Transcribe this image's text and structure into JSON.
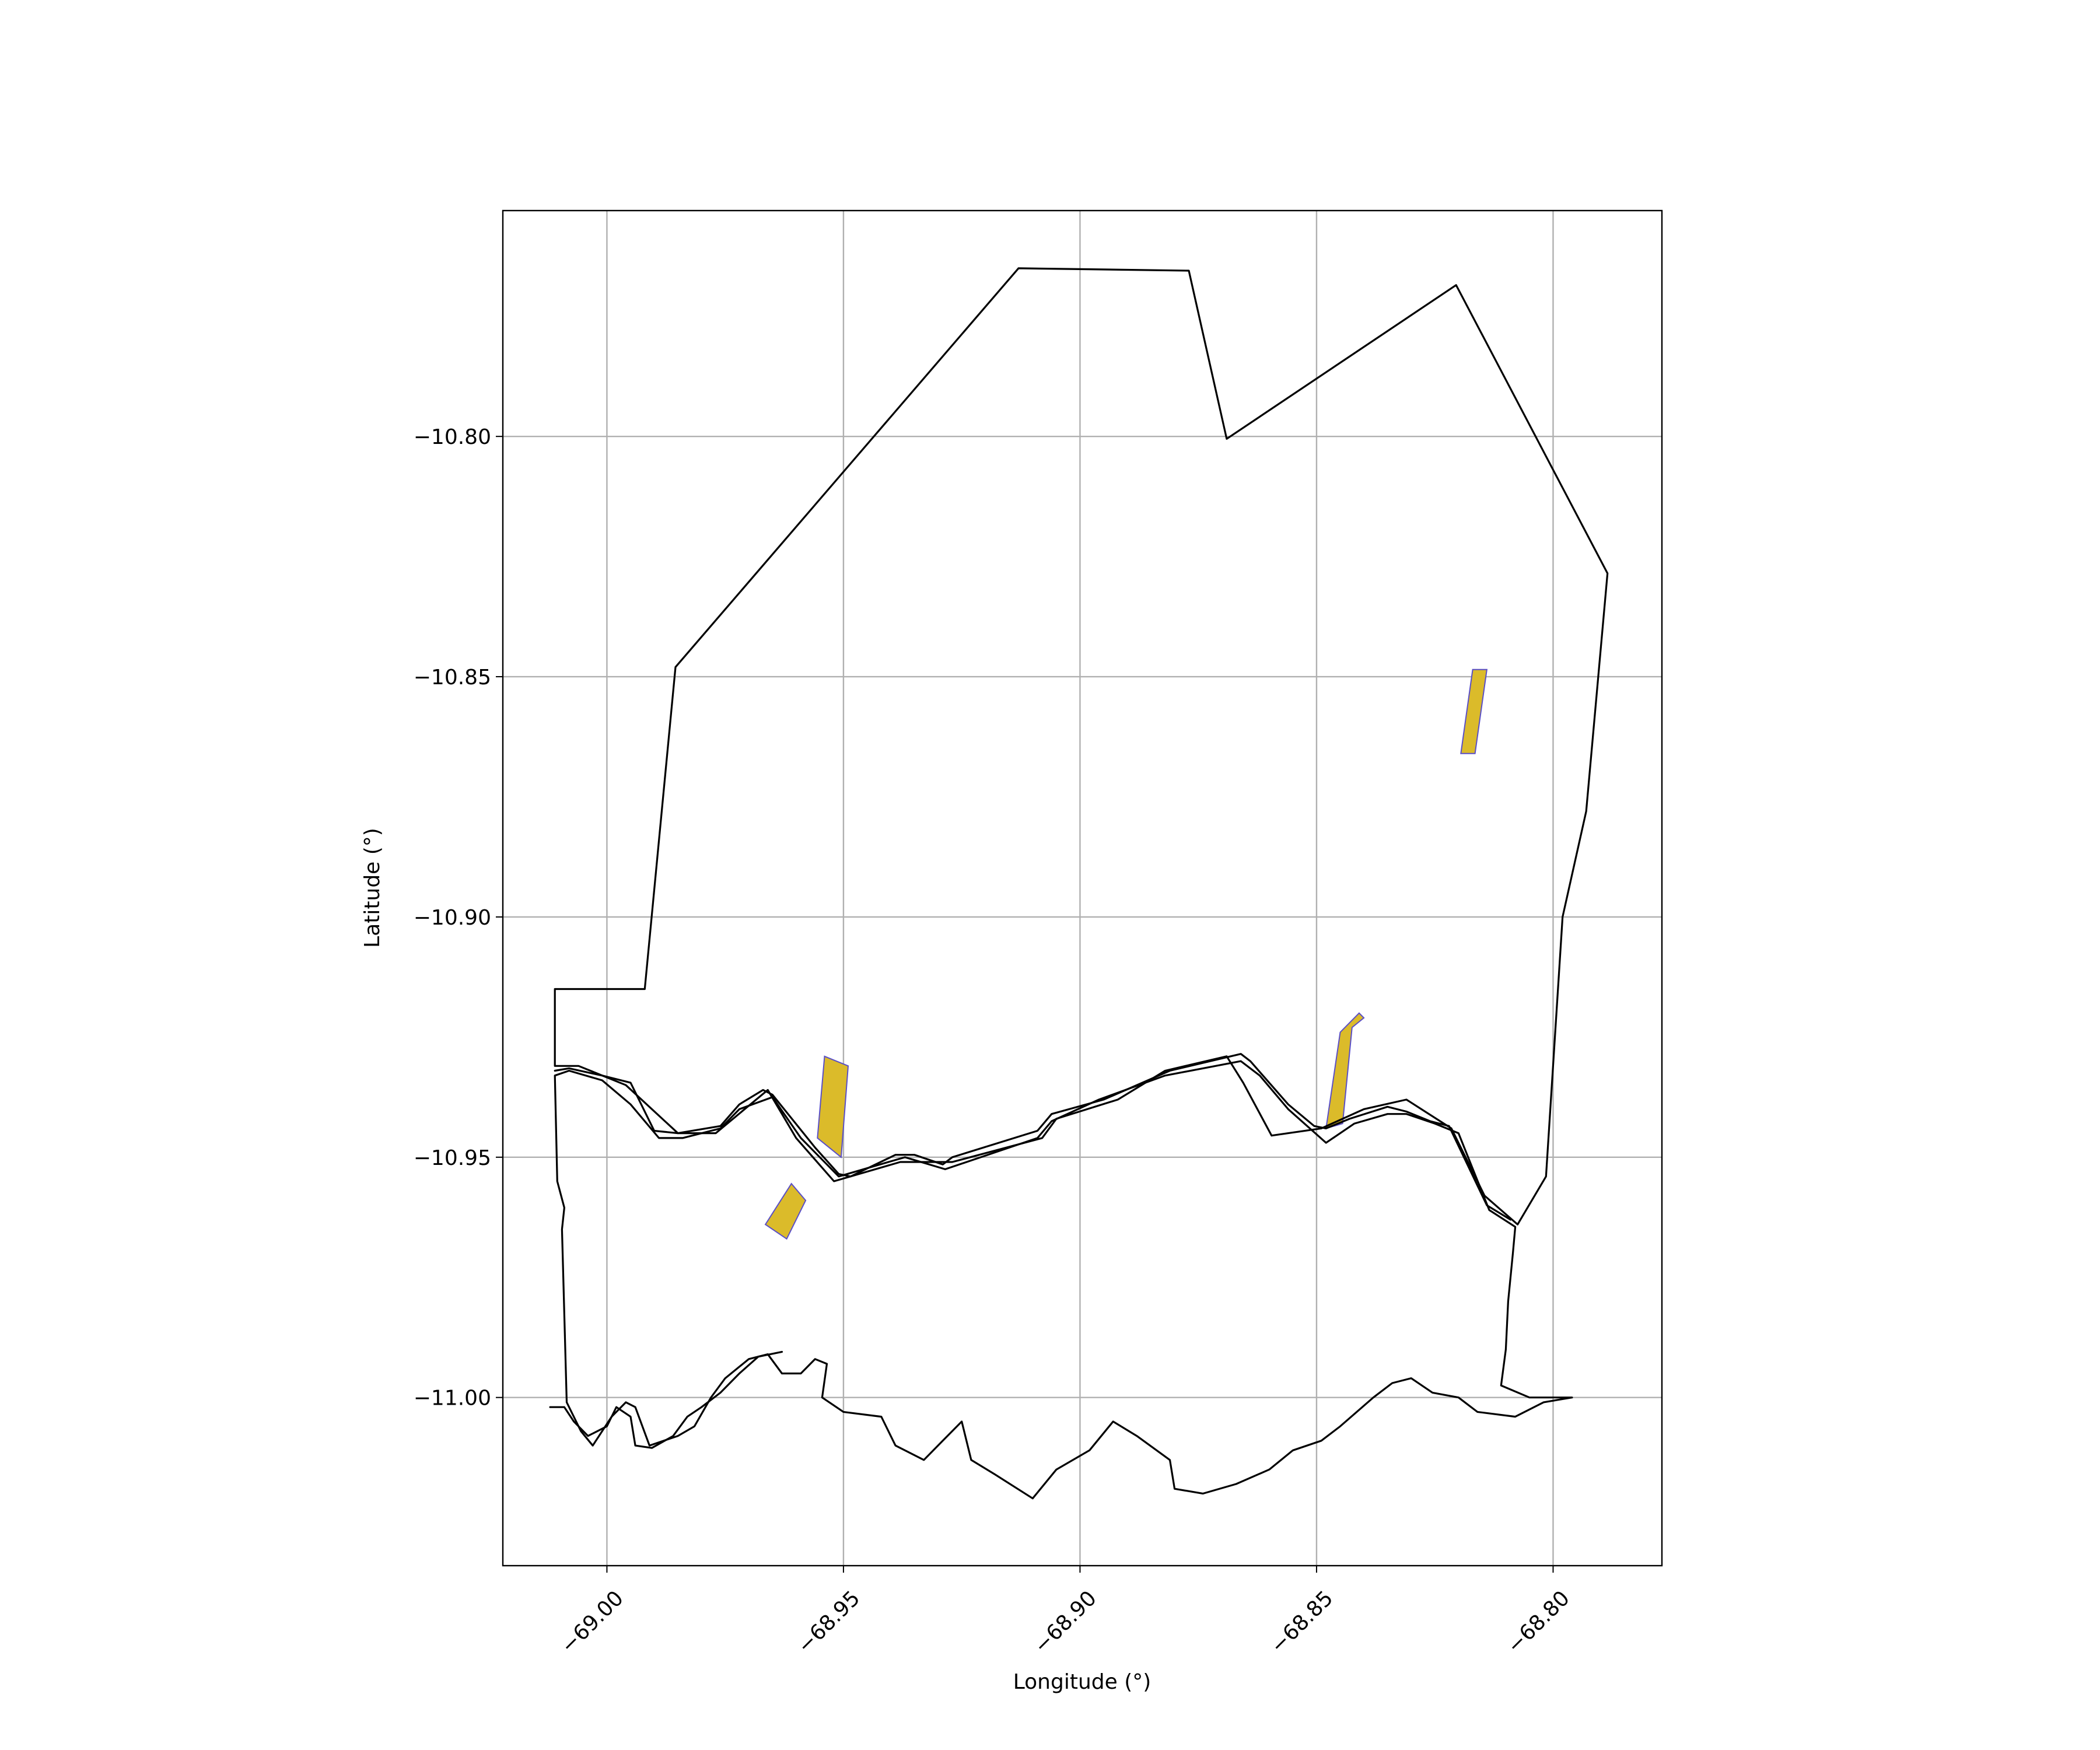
{
  "chart_data": {
    "type": "map",
    "xlabel": "Longitude (°)",
    "ylabel": "Latitude (°)",
    "xlim": [
      -69.022,
      -68.777
    ],
    "ylim": [
      -11.035,
      -10.753
    ],
    "grid": true,
    "x_ticks": [
      {
        "value": -69.0,
        "label": "−69.00"
      },
      {
        "value": -68.95,
        "label": "−68.95"
      },
      {
        "value": -68.9,
        "label": "−68.90"
      },
      {
        "value": -68.85,
        "label": "−68.85"
      },
      {
        "value": -68.8,
        "label": "−68.80"
      }
    ],
    "y_ticks": [
      {
        "value": -10.8,
        "label": "−10.80"
      },
      {
        "value": -10.85,
        "label": "−10.85"
      },
      {
        "value": -10.9,
        "label": "−10.90"
      },
      {
        "value": -10.95,
        "label": "−10.95"
      },
      {
        "value": -11.0,
        "label": "−11.00"
      }
    ],
    "colors": {
      "boundary": "#000000",
      "patch_fill": "#dbbb2a",
      "patch_edge": "#5a4fc6",
      "grid": "#b0b0b0"
    },
    "boundary_lines": [
      {
        "name": "region-outline",
        "points": [
          [
            -68.8595,
            -10.9455
          ],
          [
            -68.8655,
            -10.9345
          ],
          [
            -68.869,
            -10.929
          ],
          [
            -68.882,
            -10.932
          ],
          [
            -68.892,
            -10.938
          ],
          [
            -68.905,
            -10.942
          ],
          [
            -68.908,
            -10.946
          ],
          [
            -68.927,
            -10.951
          ],
          [
            -68.938,
            -10.951
          ],
          [
            -68.952,
            -10.955
          ],
          [
            -68.96,
            -10.946
          ],
          [
            -68.966,
            -10.936
          ],
          [
            -68.977,
            -10.945
          ],
          [
            -68.985,
            -10.945
          ],
          [
            -68.996,
            -10.935
          ],
          [
            -69.006,
            -10.931
          ],
          [
            -69.011,
            -10.931
          ],
          [
            -69.011,
            -10.915
          ],
          [
            -68.992,
            -10.915
          ],
          [
            -68.9855,
            -10.848
          ],
          [
            -68.913,
            -10.765
          ],
          [
            -68.877,
            -10.7655
          ],
          [
            -68.869,
            -10.8005
          ],
          [
            -68.8205,
            -10.7685
          ],
          [
            -68.7885,
            -10.8285
          ],
          [
            -68.793,
            -10.878
          ],
          [
            -68.798,
            -10.9
          ],
          [
            -68.8015,
            -10.954
          ],
          [
            -68.8075,
            -10.964
          ],
          [
            -68.8145,
            -10.958
          ],
          [
            -68.8215,
            -10.944
          ],
          [
            -68.831,
            -10.938
          ],
          [
            -68.84,
            -10.94
          ],
          [
            -68.849,
            -10.944
          ],
          [
            -68.8595,
            -10.9455
          ]
        ]
      },
      {
        "name": "lower-outline",
        "points": [
          [
            -68.796,
            -11.0
          ],
          [
            -68.805,
            -11.0
          ],
          [
            -68.811,
            -10.9975
          ],
          [
            -68.81,
            -10.99
          ],
          [
            -68.8095,
            -10.98
          ],
          [
            -68.8085,
            -10.97
          ],
          [
            -68.808,
            -10.9645
          ],
          [
            -68.8135,
            -10.961
          ],
          [
            -68.82,
            -10.945
          ],
          [
            -68.825,
            -10.943
          ],
          [
            -68.831,
            -10.941
          ],
          [
            -68.835,
            -10.941
          ],
          [
            -68.842,
            -10.943
          ],
          [
            -68.848,
            -10.947
          ],
          [
            -68.856,
            -10.94
          ],
          [
            -68.862,
            -10.933
          ],
          [
            -68.866,
            -10.93
          ],
          [
            -68.882,
            -10.933
          ],
          [
            -68.896,
            -10.938
          ],
          [
            -68.906,
            -10.9425
          ],
          [
            -68.909,
            -10.946
          ],
          [
            -68.9285,
            -10.9525
          ],
          [
            -68.937,
            -10.95
          ],
          [
            -68.951,
            -10.954
          ],
          [
            -68.959,
            -10.946
          ],
          [
            -68.965,
            -10.9375
          ],
          [
            -68.972,
            -10.94
          ],
          [
            -68.976,
            -10.944
          ],
          [
            -68.984,
            -10.946
          ],
          [
            -68.989,
            -10.946
          ],
          [
            -68.995,
            -10.939
          ],
          [
            -69.001,
            -10.934
          ],
          [
            -69.008,
            -10.932
          ],
          [
            -69.011,
            -10.933
          ],
          [
            -69.0105,
            -10.955
          ],
          [
            -69.009,
            -10.9605
          ],
          [
            -69.0095,
            -10.965
          ],
          [
            -69.0085,
            -11.001
          ],
          [
            -69.0055,
            -11.007
          ],
          [
            -69.003,
            -11.01
          ],
          [
            -68.999,
            -11.004
          ],
          [
            -68.996,
            -11.001
          ],
          [
            -68.994,
            -11.002
          ],
          [
            -68.991,
            -11.01
          ],
          [
            -68.985,
            -11.008
          ],
          [
            -68.9815,
            -11.006
          ],
          [
            -68.978,
            -11.0
          ],
          [
            -68.975,
            -10.996
          ],
          [
            -68.97,
            -10.992
          ],
          [
            -68.966,
            -10.991
          ],
          [
            -68.963,
            -10.995
          ],
          [
            -68.959,
            -10.995
          ],
          [
            -68.956,
            -10.992
          ],
          [
            -68.9535,
            -10.993
          ],
          [
            -68.9545,
            -11.0
          ],
          [
            -68.95,
            -11.003
          ],
          [
            -68.942,
            -11.004
          ],
          [
            -68.939,
            -11.01
          ],
          [
            -68.933,
            -11.013
          ],
          [
            -68.929,
            -11.009
          ],
          [
            -68.925,
            -11.005
          ],
          [
            -68.923,
            -11.013
          ],
          [
            -68.918,
            -11.016
          ],
          [
            -68.91,
            -11.021
          ],
          [
            -68.905,
            -11.015
          ],
          [
            -68.898,
            -11.011
          ],
          [
            -68.893,
            -11.005
          ],
          [
            -68.888,
            -11.008
          ],
          [
            -68.881,
            -11.013
          ],
          [
            -68.88,
            -11.019
          ],
          [
            -68.874,
            -11.02
          ],
          [
            -68.867,
            -11.018
          ],
          [
            -68.86,
            -11.015
          ],
          [
            -68.855,
            -11.011
          ],
          [
            -68.849,
            -11.009
          ],
          [
            -68.845,
            -11.006
          ],
          [
            -68.838,
            -11.0
          ],
          [
            -68.834,
            -10.997
          ],
          [
            -68.83,
            -10.996
          ],
          [
            -68.8255,
            -10.999
          ],
          [
            -68.82,
            -11.0
          ],
          [
            -68.816,
            -11.003
          ],
          [
            -68.808,
            -11.004
          ],
          [
            -68.802,
            -11.001
          ],
          [
            -68.796,
            -11.0
          ]
        ]
      },
      {
        "name": "river-north-bank",
        "points": [
          [
            -69.011,
            -10.932
          ],
          [
            -69.008,
            -10.9315
          ],
          [
            -69.001,
            -10.933
          ],
          [
            -68.995,
            -10.9345
          ],
          [
            -68.99,
            -10.9445
          ],
          [
            -68.985,
            -10.945
          ],
          [
            -68.976,
            -10.9435
          ],
          [
            -68.972,
            -10.939
          ],
          [
            -68.967,
            -10.936
          ],
          [
            -68.965,
            -10.937
          ],
          [
            -68.956,
            -10.948
          ],
          [
            -68.951,
            -10.9535
          ],
          [
            -68.9485,
            -10.954
          ],
          [
            -68.939,
            -10.9495
          ],
          [
            -68.935,
            -10.9495
          ],
          [
            -68.929,
            -10.9515
          ],
          [
            -68.927,
            -10.95
          ],
          [
            -68.909,
            -10.9445
          ],
          [
            -68.906,
            -10.941
          ],
          [
            -68.895,
            -10.938
          ],
          [
            -68.881,
            -10.932
          ],
          [
            -68.866,
            -10.9285
          ],
          [
            -68.864,
            -10.93
          ],
          [
            -68.856,
            -10.939
          ],
          [
            -68.8505,
            -10.9435
          ],
          [
            -68.848,
            -10.944
          ],
          [
            -68.843,
            -10.942
          ],
          [
            -68.835,
            -10.9395
          ],
          [
            -68.831,
            -10.9405
          ],
          [
            -68.826,
            -10.9425
          ],
          [
            -68.822,
            -10.9435
          ],
          [
            -68.814,
            -10.96
          ],
          [
            -68.809,
            -10.963
          ]
        ]
      },
      {
        "name": "southern-river-a",
        "points": [
          [
            -69.012,
            -11.002
          ],
          [
            -69.009,
            -11.002
          ],
          [
            -69.007,
            -11.005
          ],
          [
            -69.004,
            -11.008
          ],
          [
            -69.0,
            -11.006
          ],
          [
            -68.998,
            -11.002
          ],
          [
            -68.995,
            -11.004
          ],
          [
            -68.994,
            -11.01
          ],
          [
            -68.9905,
            -11.0105
          ],
          [
            -68.986,
            -11.008
          ],
          [
            -68.983,
            -11.004
          ],
          [
            -68.98,
            -11.002
          ],
          [
            -68.976,
            -10.999
          ],
          [
            -68.972,
            -10.995
          ],
          [
            -68.968,
            -10.9915
          ],
          [
            -68.963,
            -10.9905
          ]
        ]
      }
    ],
    "patches": [
      {
        "name": "patch-northeast",
        "points": [
          [
            -68.817,
            -10.8485
          ],
          [
            -68.814,
            -10.8485
          ],
          [
            -68.8165,
            -10.866
          ],
          [
            -68.8195,
            -10.866
          ]
        ]
      },
      {
        "name": "patch-river-east",
        "points": [
          [
            -68.841,
            -10.92
          ],
          [
            -68.845,
            -10.924
          ],
          [
            -68.848,
            -10.944
          ],
          [
            -68.8445,
            -10.943
          ],
          [
            -68.8425,
            -10.923
          ],
          [
            -68.84,
            -10.921
          ]
        ]
      },
      {
        "name": "patch-river-west",
        "points": [
          [
            -68.954,
            -10.929
          ],
          [
            -68.949,
            -10.931
          ],
          [
            -68.9505,
            -10.95
          ],
          [
            -68.9555,
            -10.946
          ]
        ]
      },
      {
        "name": "patch-south-west",
        "points": [
          [
            -68.961,
            -10.9555
          ],
          [
            -68.958,
            -10.959
          ],
          [
            -68.962,
            -10.967
          ],
          [
            -68.9665,
            -10.964
          ]
        ]
      }
    ]
  }
}
